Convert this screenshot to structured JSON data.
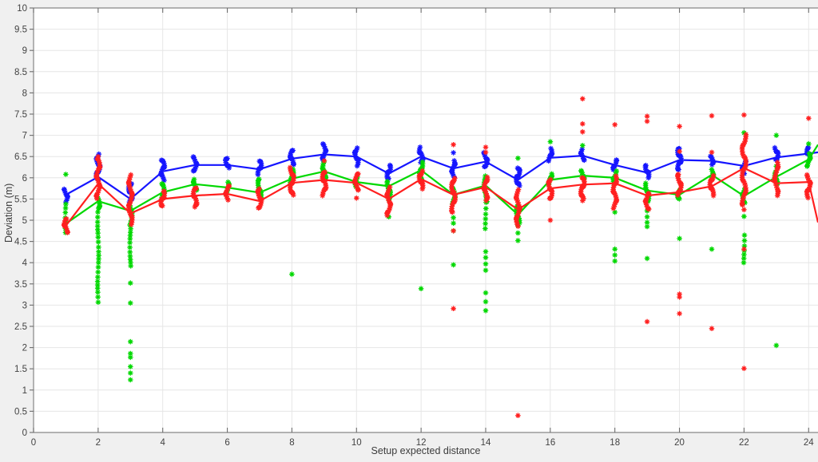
{
  "figure": {
    "bg_color": "#f0f0f0",
    "plot_bg": "#ffffff",
    "grid_color": "#e6e6e6",
    "axis_color": "#878787",
    "tick_color": "#6e6e6e",
    "tick_label_color": "#424242"
  },
  "chart_data": {
    "type": "scatter",
    "title": "",
    "xlabel": "Setup expected distance",
    "ylabel": "Deviation (m)",
    "xlim": [
      0,
      24.29
    ],
    "ylim": [
      0,
      10
    ],
    "xticks": [
      0,
      2,
      4,
      6,
      8,
      10,
      12,
      14,
      16,
      18,
      20,
      22,
      24
    ],
    "yticks": [
      0,
      0.5,
      1,
      1.5,
      2,
      2.5,
      3,
      3.5,
      4,
      4.5,
      5,
      5.5,
      6,
      6.5,
      7,
      7.5,
      8,
      8.5,
      9,
      9.5,
      10
    ],
    "grid": true,
    "marker": "*",
    "x": [
      1,
      2,
      3,
      4,
      5,
      6,
      7,
      8,
      9,
      10,
      11,
      12,
      13,
      14,
      15,
      16,
      17,
      18,
      19,
      20,
      21,
      22,
      23,
      24
    ],
    "series": [
      {
        "name": "blue",
        "color": "#1515ff",
        "means": [
          5.6,
          6.02,
          5.5,
          6.15,
          6.3,
          6.3,
          6.2,
          6.45,
          6.55,
          6.5,
          6.1,
          6.5,
          6.22,
          6.38,
          5.95,
          6.47,
          6.52,
          6.3,
          6.12,
          6.42,
          6.4,
          6.28,
          6.48,
          6.57
        ],
        "mean_ext": [
          24.29,
          6.6
        ],
        "columns": [
          [
            1,
            5.45,
            5.72,
            12,
            2.2
          ],
          [
            2,
            5.95,
            6.55,
            25,
            2.2
          ],
          [
            3,
            5.42,
            5.88,
            19,
            2.2
          ],
          [
            4,
            5.96,
            6.43,
            20,
            2.2
          ],
          [
            5,
            6.15,
            6.5,
            15,
            2.2
          ],
          [
            6,
            6.22,
            6.48,
            12,
            2.2
          ],
          [
            7,
            6.1,
            6.4,
            13,
            2.2
          ],
          [
            8,
            6.3,
            6.65,
            15,
            2.2
          ],
          [
            9,
            6.4,
            6.78,
            16,
            2.2
          ],
          [
            10,
            6.3,
            6.7,
            16,
            2.2
          ],
          [
            11,
            5.97,
            6.28,
            14,
            2.2
          ],
          [
            12,
            6.35,
            6.7,
            15,
            2.2
          ],
          [
            13,
            6.03,
            6.4,
            16,
            2.2
          ],
          [
            14,
            6.25,
            6.58,
            14,
            2.2
          ],
          [
            15,
            5.8,
            6.25,
            19,
            2.2
          ],
          [
            16,
            6.42,
            6.67,
            11,
            2.2
          ],
          [
            17,
            6.4,
            6.66,
            12,
            2.2
          ],
          [
            18,
            6.18,
            6.43,
            11,
            2.2
          ],
          [
            19,
            6.02,
            6.28,
            12,
            2.2
          ],
          [
            20,
            6.18,
            6.7,
            22,
            2.2
          ],
          [
            21,
            6.3,
            6.5,
            10,
            2.2
          ],
          [
            22,
            6.12,
            6.38,
            12,
            2.2
          ],
          [
            23,
            6.42,
            6.7,
            12,
            2.2
          ],
          [
            24,
            6.5,
            6.7,
            10,
            2.2
          ]
        ],
        "points": [
          [
            13,
            6.59
          ]
        ]
      },
      {
        "name": "green",
        "color": "#00d800",
        "means": [
          4.92,
          5.45,
          5.22,
          5.66,
          5.85,
          5.77,
          5.65,
          5.98,
          6.15,
          5.9,
          5.8,
          6.18,
          5.6,
          5.82,
          5.13,
          5.95,
          6.05,
          6.0,
          5.7,
          5.6,
          6.07,
          5.57,
          6.02,
          6.43
        ],
        "mean_ext": [
          24.29,
          6.78
        ],
        "columns": [
          [
            1,
            4.72,
            5.38,
            7,
            0.8
          ],
          [
            2,
            5.26,
            5.5,
            8,
            2
          ],
          [
            2,
            3.08,
            5.18,
            22,
            0.7
          ],
          [
            3,
            4.9,
            5.35,
            10,
            2
          ],
          [
            3,
            3.9,
            4.82,
            11,
            0.7
          ],
          [
            4,
            5.5,
            5.87,
            12,
            2
          ],
          [
            5,
            5.72,
            5.97,
            10,
            2
          ],
          [
            6,
            5.58,
            5.92,
            11,
            2
          ],
          [
            7,
            5.55,
            5.98,
            12,
            2
          ],
          [
            8,
            5.85,
            6.18,
            12,
            2
          ],
          [
            9,
            5.95,
            6.35,
            14,
            2
          ],
          [
            10,
            5.8,
            6.0,
            9,
            2
          ],
          [
            11,
            5.5,
            5.9,
            13,
            2
          ],
          [
            12,
            5.95,
            6.35,
            14,
            2
          ],
          [
            13,
            5.4,
            5.78,
            12,
            2
          ],
          [
            14,
            5.45,
            6.05,
            10,
            2
          ],
          [
            14,
            4.78,
            5.42,
            6,
            0.6
          ],
          [
            15,
            4.95,
            5.32,
            11,
            2
          ],
          [
            16,
            5.85,
            6.1,
            10,
            2
          ],
          [
            17,
            5.95,
            6.16,
            9,
            2
          ],
          [
            18,
            5.88,
            6.14,
            10,
            2
          ],
          [
            19,
            5.45,
            5.85,
            12,
            2
          ],
          [
            20,
            5.48,
            5.7,
            9,
            2
          ],
          [
            21,
            5.98,
            6.18,
            9,
            2
          ],
          [
            22,
            5.42,
            5.74,
            11,
            2
          ],
          [
            22,
            3.98,
            4.63,
            7,
            0.6
          ],
          [
            23,
            5.88,
            6.12,
            10,
            2
          ],
          [
            24,
            6.28,
            6.56,
            11,
            2
          ]
        ],
        "points": [
          [
            1,
            6.08
          ],
          [
            3,
            3.52
          ],
          [
            3,
            3.05
          ],
          [
            3,
            2.14
          ],
          [
            3,
            1.86
          ],
          [
            3,
            1.77
          ],
          [
            3,
            1.55
          ],
          [
            3,
            1.4
          ],
          [
            3,
            1.24
          ],
          [
            8,
            3.73
          ],
          [
            11,
            5.08
          ],
          [
            12,
            3.39
          ],
          [
            13,
            5.06
          ],
          [
            13,
            4.93
          ],
          [
            13,
            4.75
          ],
          [
            13,
            3.95
          ],
          [
            14,
            4.26
          ],
          [
            14,
            4.12
          ],
          [
            14,
            3.97
          ],
          [
            14,
            3.82
          ],
          [
            14,
            3.29
          ],
          [
            14,
            3.08
          ],
          [
            14,
            2.87
          ],
          [
            15,
            4.88
          ],
          [
            15,
            4.7
          ],
          [
            15,
            4.52
          ],
          [
            15,
            6.46
          ],
          [
            16,
            6.85
          ],
          [
            17,
            6.76
          ],
          [
            18,
            5.19
          ],
          [
            18,
            4.32
          ],
          [
            18,
            4.18
          ],
          [
            18,
            4.04
          ],
          [
            19,
            5.22
          ],
          [
            19,
            5.08
          ],
          [
            19,
            4.95
          ],
          [
            19,
            4.85
          ],
          [
            19,
            4.1
          ],
          [
            20,
            4.57
          ],
          [
            21,
            4.32
          ],
          [
            22,
            7.06
          ],
          [
            22,
            5.09
          ],
          [
            23,
            7.0
          ],
          [
            23,
            6.27
          ],
          [
            23,
            2.05
          ],
          [
            24,
            6.8
          ]
        ]
      },
      {
        "name": "red",
        "color": "#ff1f1f",
        "means": [
          4.87,
          5.86,
          5.16,
          5.5,
          5.58,
          5.62,
          5.45,
          5.88,
          5.95,
          5.88,
          5.5,
          5.97,
          5.6,
          5.78,
          5.25,
          5.75,
          5.84,
          5.87,
          5.58,
          5.66,
          5.8,
          6.23,
          5.87,
          5.9
        ],
        "mean_ext": [
          24.29,
          4.95
        ],
        "columns": [
          [
            1,
            4.7,
            5.02,
            14,
            2.2
          ],
          [
            2,
            5.5,
            6.45,
            30,
            2.2
          ],
          [
            3,
            4.92,
            6.05,
            30,
            2.2
          ],
          [
            4,
            5.33,
            5.67,
            14,
            2.2
          ],
          [
            5,
            5.3,
            5.78,
            18,
            2.2
          ],
          [
            6,
            5.5,
            5.82,
            13,
            2.2
          ],
          [
            7,
            5.28,
            5.76,
            17,
            2.2
          ],
          [
            8,
            5.58,
            6.22,
            22,
            2.2
          ],
          [
            9,
            5.6,
            6.15,
            20,
            2.2
          ],
          [
            10,
            5.7,
            6.1,
            15,
            2.2
          ],
          [
            11,
            5.1,
            5.76,
            22,
            2.2
          ],
          [
            12,
            5.76,
            6.16,
            16,
            2.2
          ],
          [
            13,
            5.18,
            6.0,
            24,
            2.2
          ],
          [
            14,
            5.45,
            6.02,
            20,
            2.2
          ],
          [
            15,
            4.88,
            5.7,
            24,
            2.2
          ],
          [
            16,
            5.5,
            5.98,
            17,
            2.2
          ],
          [
            17,
            5.5,
            6.02,
            18,
            2.2
          ],
          [
            18,
            5.3,
            6.02,
            24,
            2.2
          ],
          [
            19,
            5.25,
            5.62,
            14,
            2.2
          ],
          [
            20,
            5.58,
            6.1,
            18,
            2.2
          ],
          [
            21,
            5.6,
            6.05,
            16,
            2.2
          ],
          [
            22,
            5.35,
            7.0,
            40,
            2.4
          ],
          [
            23,
            5.57,
            6.37,
            20,
            2.2
          ],
          [
            24,
            5.55,
            6.05,
            18,
            2.2
          ]
        ],
        "points": [
          [
            2,
            6.5
          ],
          [
            9,
            6.4
          ],
          [
            10,
            5.52
          ],
          [
            13,
            6.78
          ],
          [
            13,
            4.75
          ],
          [
            13,
            2.92
          ],
          [
            14,
            6.72
          ],
          [
            14,
            6.6
          ],
          [
            15,
            0.4
          ],
          [
            16,
            5.0
          ],
          [
            17,
            7.86
          ],
          [
            17,
            7.27
          ],
          [
            17,
            7.08
          ],
          [
            17,
            5.46
          ],
          [
            18,
            7.25
          ],
          [
            19,
            7.45
          ],
          [
            19,
            7.33
          ],
          [
            19,
            2.61
          ],
          [
            20,
            7.21
          ],
          [
            20,
            6.62
          ],
          [
            20,
            3.26
          ],
          [
            20,
            3.19
          ],
          [
            20,
            2.8
          ],
          [
            21,
            7.46
          ],
          [
            21,
            6.6
          ],
          [
            21,
            2.45
          ],
          [
            22,
            7.48
          ],
          [
            22,
            5.25
          ],
          [
            22,
            4.32
          ],
          [
            22,
            1.51
          ],
          [
            24,
            7.4
          ]
        ]
      }
    ]
  }
}
